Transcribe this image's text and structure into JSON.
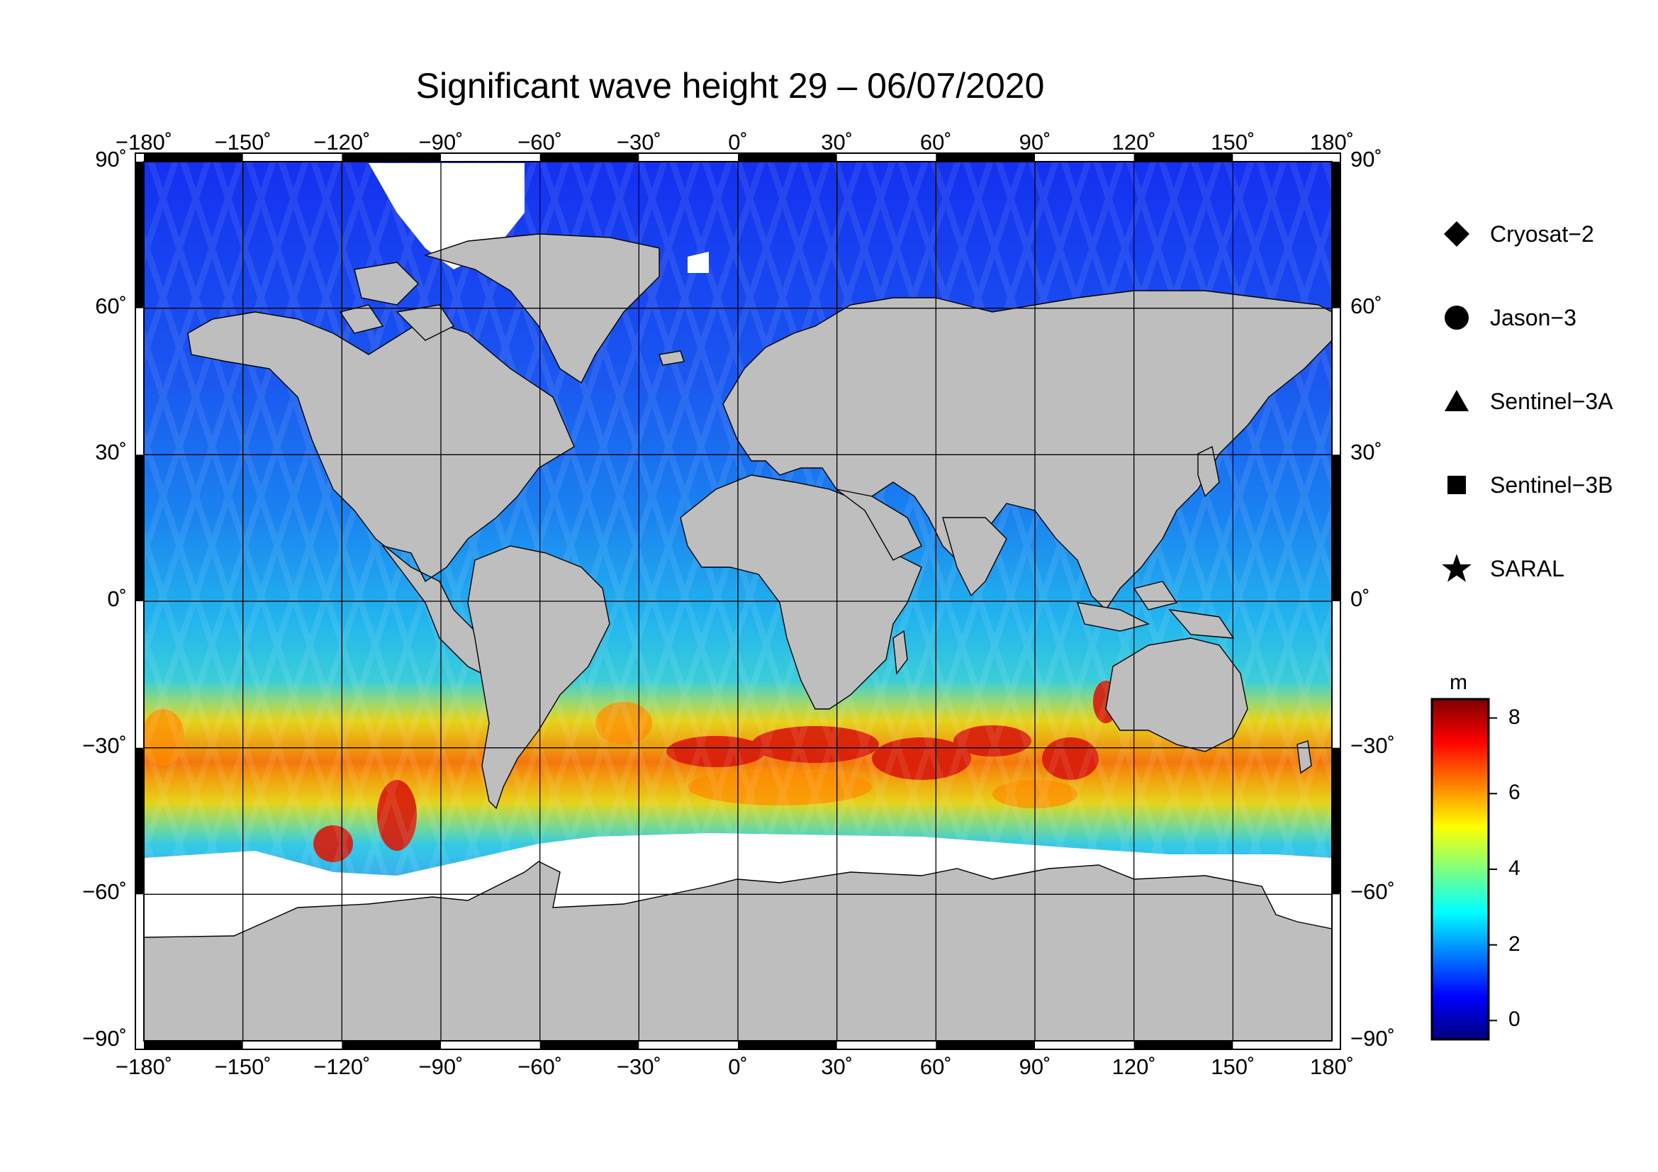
{
  "title": "Significant wave height 29 – 06/07/2020",
  "map": {
    "projection": "equirectangular",
    "lon_range": [
      -180,
      180
    ],
    "lat_range": [
      -90,
      90
    ],
    "land_color": "#bebebe",
    "ice_color": "#ffffff",
    "graticule": true
  },
  "lon_ticks": [
    "−180˚",
    "−150˚",
    "−120˚",
    "−90˚",
    "−60˚",
    "−30˚",
    "0˚",
    "30˚",
    "60˚",
    "90˚",
    "120˚",
    "150˚",
    "180˚"
  ],
  "lat_ticks": [
    "90˚",
    "60˚",
    "30˚",
    "0˚",
    "−30˚",
    "−60˚",
    "−90˚"
  ],
  "legend": {
    "items": [
      {
        "label": "Cryosat−2",
        "symbol": "diamond-icon"
      },
      {
        "label": "Jason−3",
        "symbol": "circle-icon"
      },
      {
        "label": "Sentinel−3A",
        "symbol": "triangle-icon"
      },
      {
        "label": "Sentinel−3B",
        "symbol": "square-icon"
      },
      {
        "label": "SARAL",
        "symbol": "star-icon"
      }
    ]
  },
  "colorbar": {
    "unit": "m",
    "min": -0.5,
    "max": 8.5,
    "ticks": [
      "0",
      "2",
      "4",
      "6",
      "8"
    ],
    "colors": [
      "#00007f",
      "#0000ff",
      "#007fff",
      "#00ffff",
      "#7fff7f",
      "#ffff00",
      "#ff7f00",
      "#ff0000",
      "#7f0000"
    ]
  }
}
